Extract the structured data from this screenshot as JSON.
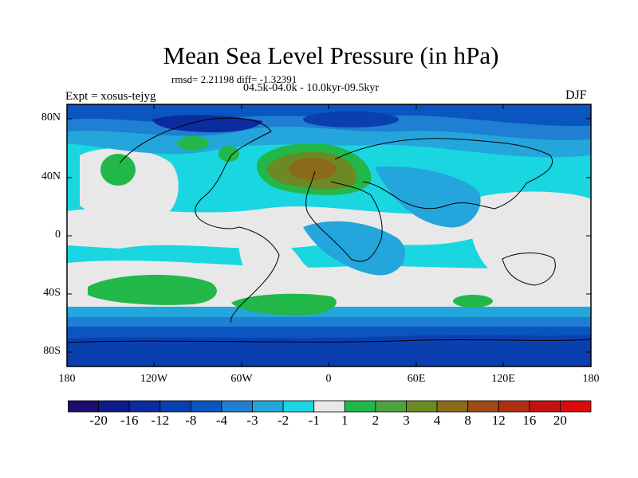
{
  "title": "Mean Sea Level Pressure (in hPa)",
  "stats": "rmsd= 2.21198 diff= -1.32391",
  "period": "04.5k-04.0k - 10.0kyr-09.5kyr",
  "experiment": "Expt = xosus-tejyg",
  "season": "DJF",
  "lat_labels": [
    "80N",
    "40N",
    "0",
    "40S",
    "80S"
  ],
  "lon_labels": [
    "180",
    "120W",
    "60W",
    "0",
    "60E",
    "120E",
    "180"
  ],
  "legend": {
    "labels": [
      "-20",
      "-16",
      "-12",
      "-8",
      "-4",
      "-3",
      "-2",
      "-1",
      "1",
      "2",
      "3",
      "4",
      "8",
      "12",
      "16",
      "20"
    ],
    "colors": [
      "#1c0e6e",
      "#0c1a8a",
      "#0b2b9e",
      "#0a3fb0",
      "#0a55c0",
      "#1f7fd2",
      "#24a6dc",
      "#19d6e1",
      "#e8e8e8",
      "#22b849",
      "#4ea33c",
      "#6b8a24",
      "#8a6b1a",
      "#9f4a14",
      "#b02f10",
      "#c4120c",
      "#dc0a0a"
    ]
  },
  "field_colors": {
    "land_line": "#000000",
    "neutral": "#e8e8e8",
    "cyan": "#19d6e1",
    "lightblue": "#24a6dc",
    "midblue": "#1f7fd2",
    "blue": "#0a55c0",
    "darkblue": "#0a3fb0",
    "navy": "#0b2b9e",
    "green": "#22b849",
    "olive": "#6b8a24",
    "brown": "#8a6b1a"
  }
}
